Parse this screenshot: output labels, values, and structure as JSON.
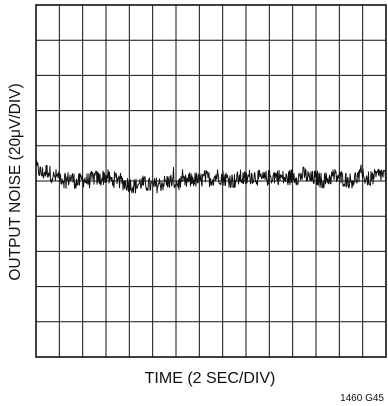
{
  "chart_data": {
    "type": "line",
    "title": "",
    "xlabel": "TIME (2 SEC/DIV)",
    "ylabel": "OUTPUT NOISE (20μV/DIV)",
    "figure_code": "1460 G45",
    "grid": true,
    "x_divisions": 15,
    "y_divisions": 10,
    "xlim": [
      0,
      30
    ],
    "ylim": [
      -100,
      100
    ],
    "x_units": "s",
    "y_units": "μV",
    "series": [
      {
        "color": "#111111",
        "x": [
          0.0,
          0.5,
          1.0,
          1.5,
          2.0,
          2.5,
          3.0,
          3.5,
          4.0,
          4.5,
          5.0,
          5.5,
          6.0,
          6.5,
          7.0,
          7.5,
          8.0,
          8.5,
          9.0,
          9.5,
          10.0,
          10.5,
          11.0,
          11.5,
          12.0,
          12.5,
          13.0,
          13.5,
          14.0,
          14.5,
          15.0,
          15.5,
          16.0,
          16.5,
          17.0,
          17.5,
          18.0,
          18.5,
          19.0,
          19.5,
          20.0,
          20.5,
          21.0,
          21.5,
          22.0,
          22.5,
          23.0,
          23.5,
          24.0,
          24.5,
          25.0,
          25.5,
          26.0,
          26.5,
          27.0,
          27.5,
          28.0,
          28.5,
          29.0,
          29.5,
          30.0
        ],
        "y": [
          8,
          4,
          6,
          2,
          3,
          0,
          2,
          -1,
          1,
          0,
          2,
          1,
          3,
          0,
          2,
          -1,
          -2,
          -3,
          -1,
          -2,
          -3,
          -2,
          -1,
          0,
          -1,
          -2,
          0,
          1,
          0,
          2,
          1,
          3,
          2,
          1,
          0,
          2,
          1,
          3,
          2,
          1,
          2,
          3,
          2,
          1,
          3,
          2,
          4,
          1,
          2,
          0,
          1,
          3,
          2,
          1,
          0,
          2,
          3,
          1,
          2,
          4,
          3
        ]
      }
    ]
  }
}
